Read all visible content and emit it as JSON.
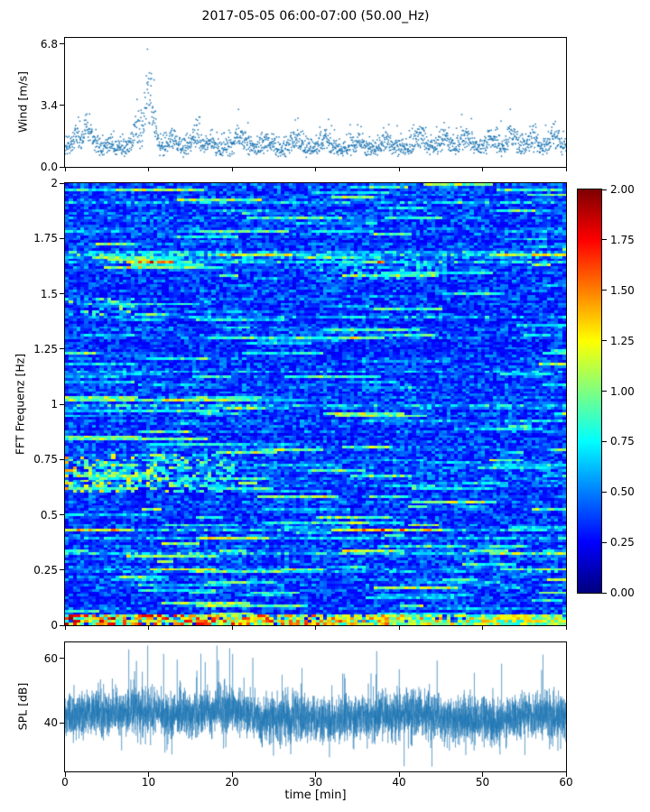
{
  "figure": {
    "title": "2017-05-05 06:00-07:00 (50.00_Hz)",
    "xlabel": "time [min]",
    "xticks": {
      "values": [
        0,
        10,
        20,
        30,
        40,
        50,
        60
      ],
      "labels": [
        "0",
        "10",
        "20",
        "30",
        "40",
        "50",
        "60"
      ]
    }
  },
  "chart_data": [
    {
      "id": "wind",
      "type": "scatter",
      "ylabel": "Wind [m/s]",
      "xlim": [
        0,
        60
      ],
      "ylim": [
        0,
        7.14
      ],
      "yticks": {
        "values": [
          0.0,
          3.4,
          6.8
        ],
        "labels": [
          "0.0",
          "3.4",
          "6.8"
        ]
      },
      "marker_color": "#1f77b4",
      "marker_size": 1.5,
      "n_points": 2000,
      "baseline": 1.0,
      "noise": 0.3,
      "gusts": [
        [
          1.5,
          1.2,
          0.8
        ],
        [
          2.8,
          1.6,
          0.9
        ],
        [
          5.5,
          0.6,
          0.8
        ],
        [
          8.6,
          1.9,
          0.7
        ],
        [
          9.9,
          4.7,
          0.55
        ],
        [
          10.6,
          2.2,
          0.5
        ],
        [
          13.0,
          0.9,
          0.8
        ],
        [
          15.8,
          1.5,
          0.7
        ],
        [
          17.5,
          0.8,
          0.6
        ],
        [
          21.0,
          1.1,
          0.9
        ],
        [
          24.0,
          0.8,
          0.8
        ],
        [
          27.5,
          0.9,
          0.7
        ],
        [
          31.0,
          0.8,
          0.8
        ],
        [
          35.0,
          0.7,
          0.9
        ],
        [
          38.5,
          0.8,
          0.8
        ],
        [
          42.5,
          1.2,
          0.9
        ],
        [
          45.5,
          1.0,
          0.7
        ],
        [
          48.0,
          1.3,
          0.8
        ],
        [
          51.0,
          0.9,
          0.8
        ],
        [
          53.5,
          1.5,
          0.7
        ],
        [
          56.0,
          1.0,
          0.8
        ],
        [
          58.5,
          1.1,
          0.7
        ]
      ]
    },
    {
      "id": "spectrogram",
      "type": "heatmap",
      "ylabel": "FFT Frequenz [Hz]",
      "xlim": [
        0,
        60
      ],
      "ylim": [
        0,
        2
      ],
      "clim": [
        0,
        2
      ],
      "colormap": "jet",
      "yticks": {
        "values": [
          0,
          0.25,
          0.5,
          0.75,
          1,
          1.25,
          1.5,
          1.75,
          2
        ],
        "labels": [
          "0",
          "0.25",
          "0.5",
          "0.75",
          "1",
          "1.25",
          "1.5",
          "1.75",
          "2"
        ]
      },
      "grid": {
        "cols": 130,
        "rows": 170
      },
      "background": {
        "base_min": 0.24,
        "base_max": 0.6,
        "row_streak_prob": 0.09,
        "seg_boost_prob": 0.16
      },
      "features": [
        {
          "name": "surface-band",
          "freq": [
            0,
            0.045
          ],
          "x": [
            0,
            60
          ],
          "values": [
            0.7,
            2.0
          ],
          "prob": 0.9,
          "mode": "replace",
          "left_emphasis": true
        },
        {
          "name": "swell-band",
          "freq": [
            0.6,
            0.77
          ],
          "x": [
            0,
            20
          ],
          "values": [
            0.5,
            1.5
          ],
          "prob": 0.45,
          "mode": "max",
          "left_emphasis": true
        },
        {
          "name": "mid-streak-1p45",
          "freq": [
            1.4,
            1.48
          ],
          "x": [
            0,
            8
          ],
          "values": [
            0.5,
            1.1
          ],
          "prob": 0.35,
          "mode": "max",
          "left_emphasis": false
        },
        {
          "name": "upper-streak-1p6",
          "freq": [
            1.57,
            1.66
          ],
          "x": [
            30,
            46
          ],
          "values": [
            0.45,
            0.85
          ],
          "prob": 0.4,
          "mode": "max",
          "left_emphasis": false
        }
      ],
      "colorbar": {
        "ticks": {
          "values": [
            0,
            0.25,
            0.5,
            0.75,
            1,
            1.25,
            1.5,
            1.75,
            2
          ],
          "labels": [
            "0.00",
            "0.25",
            "0.50",
            "0.75",
            "1.00",
            "1.25",
            "1.50",
            "1.75",
            "2.00"
          ]
        }
      }
    },
    {
      "id": "spl",
      "type": "line",
      "ylabel": "SPL [dB]",
      "xlim": [
        0,
        60
      ],
      "ylim": [
        25,
        65
      ],
      "yticks": {
        "values": [
          40,
          60
        ],
        "labels": [
          "40",
          "60"
        ]
      },
      "line_color": "#1f77b4",
      "line_width": 0.5,
      "n_points": 5800,
      "mean": 42.5,
      "noise_sigma": 3.4,
      "spike_up_prob": 0.006,
      "spike_down_prob": 0.004
    }
  ]
}
